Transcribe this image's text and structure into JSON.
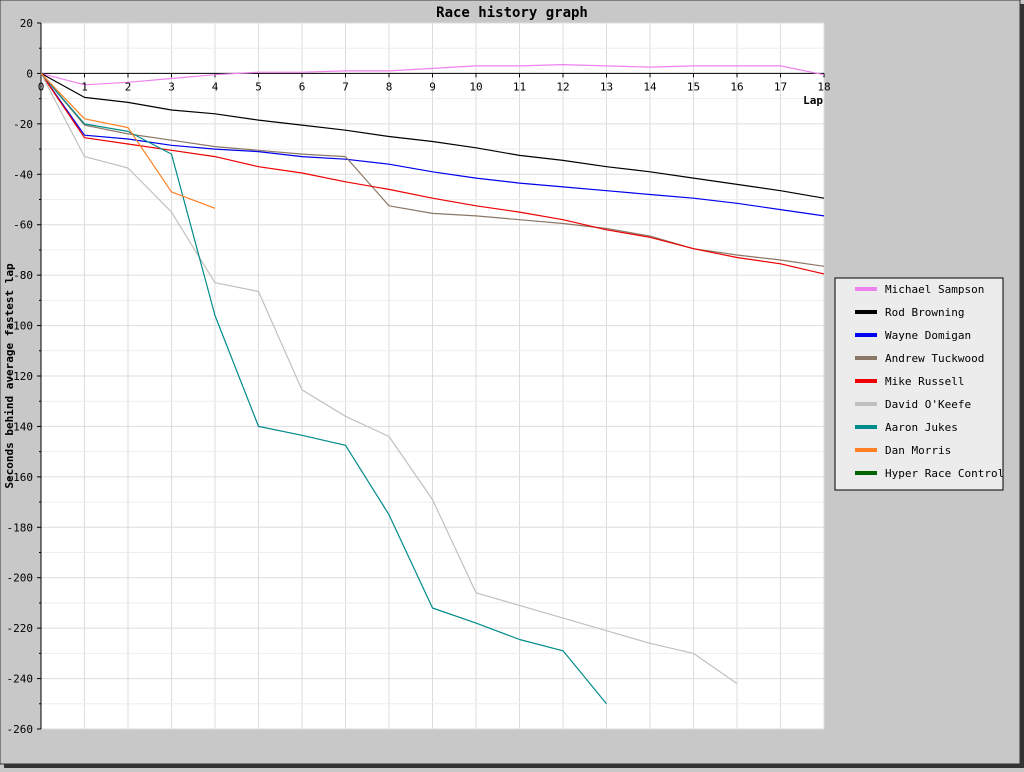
{
  "chart_data": {
    "type": "line",
    "title": "Race history graph",
    "xlabel": "Lap",
    "ylabel": "Seconds behind average fastest lap",
    "xlim": [
      0,
      18
    ],
    "ylim": [
      -260,
      20
    ],
    "x_ticks": [
      0,
      1,
      2,
      3,
      4,
      5,
      6,
      7,
      8,
      9,
      10,
      11,
      12,
      13,
      14,
      15,
      16,
      17,
      18
    ],
    "y_ticks": [
      20,
      0,
      -20,
      -40,
      -60,
      -80,
      -100,
      -120,
      -140,
      -160,
      -180,
      -200,
      -220,
      -240,
      -260
    ],
    "grid": true,
    "legend_position": "right",
    "series": [
      {
        "name": "Michael Sampson",
        "color": "#ee82ee",
        "x": [
          0,
          1,
          2,
          3,
          4,
          5,
          6,
          7,
          8,
          9,
          10,
          11,
          12,
          13,
          14,
          15,
          16,
          17,
          18
        ],
        "y": [
          0,
          -4.5,
          -3.5,
          -2,
          -0.5,
          0.5,
          0.5,
          1,
          1,
          2,
          3,
          3,
          3.5,
          3,
          2.5,
          3,
          3,
          3,
          -0.5
        ]
      },
      {
        "name": "Rod Browning",
        "color": "#000000",
        "x": [
          0,
          1,
          2,
          3,
          4,
          5,
          6,
          7,
          8,
          9,
          10,
          11,
          12,
          13,
          14,
          15,
          16,
          17,
          18
        ],
        "y": [
          0,
          -9.5,
          -11.5,
          -14.5,
          -16,
          -18.5,
          -20.5,
          -22.5,
          -25,
          -27,
          -29.5,
          -32.5,
          -34.5,
          -37,
          -39,
          -41.5,
          -44,
          -46.5,
          -49.5
        ]
      },
      {
        "name": "Wayne Domigan",
        "color": "#0000ee",
        "x": [
          0,
          1,
          2,
          3,
          4,
          5,
          6,
          7,
          8,
          9,
          10,
          11,
          12,
          13,
          14,
          15,
          16,
          17,
          18
        ],
        "y": [
          0,
          -24.5,
          -26,
          -28.5,
          -30,
          -31,
          -33,
          -34,
          -36,
          -39,
          -41.5,
          -43.5,
          -45,
          -46.5,
          -48,
          -49.5,
          -51.5,
          -54,
          -56.5
        ]
      },
      {
        "name": "Andrew Tuckwood",
        "color": "#8b7765",
        "x": [
          0,
          1,
          2,
          3,
          4,
          5,
          6,
          7,
          8,
          9,
          10,
          11,
          12,
          13,
          14,
          15,
          16,
          17,
          18
        ],
        "y": [
          0,
          -20.5,
          -24,
          -26.5,
          -29,
          -30.5,
          -32,
          -33,
          -52.5,
          -55.5,
          -56.5,
          -58,
          -59.5,
          -61.5,
          -64.5,
          -69.5,
          -72,
          -74,
          -76.5
        ]
      },
      {
        "name": "Mike Russell",
        "color": "#ee0000",
        "x": [
          0,
          1,
          2,
          3,
          4,
          5,
          6,
          7,
          8,
          9,
          10,
          11,
          12,
          13,
          14,
          15,
          16,
          17,
          18
        ],
        "y": [
          0,
          -25.5,
          -28,
          -30.5,
          -33,
          -37,
          -39.5,
          -43,
          -46,
          -49.5,
          -52.5,
          -55,
          -58,
          -62,
          -65,
          -69.5,
          -73,
          -75.5,
          -79.5
        ]
      },
      {
        "name": "David O'Keefe",
        "color": "#c0c0c0",
        "x": [
          0,
          1,
          2,
          3,
          4,
          5,
          6,
          7,
          8,
          9,
          10,
          11,
          12,
          13,
          14,
          15,
          16
        ],
        "y": [
          0,
          -33,
          -37.5,
          -55,
          -83,
          -86.5,
          -125.5,
          -136,
          -144,
          -169,
          -206,
          -211,
          -216,
          -221,
          -226,
          -230,
          -242
        ]
      },
      {
        "name": "Aaron Jukes",
        "color": "#008b8b",
        "x": [
          0,
          1,
          2,
          3,
          4,
          5,
          6,
          7,
          8,
          9,
          10,
          11,
          12,
          13
        ],
        "y": [
          0,
          -20,
          -23,
          -32,
          -96,
          -140,
          -143.5,
          -147.5,
          -175,
          -212,
          -218,
          -224.5,
          -229,
          -250
        ]
      },
      {
        "name": "Dan Morris",
        "color": "#ff7f24",
        "x": [
          0,
          1,
          2,
          3,
          4
        ],
        "y": [
          0,
          -18,
          -21.5,
          -47,
          -53.5
        ]
      },
      {
        "name": "Hyper Race Control",
        "color": "#006400",
        "x": [],
        "y": []
      }
    ]
  }
}
